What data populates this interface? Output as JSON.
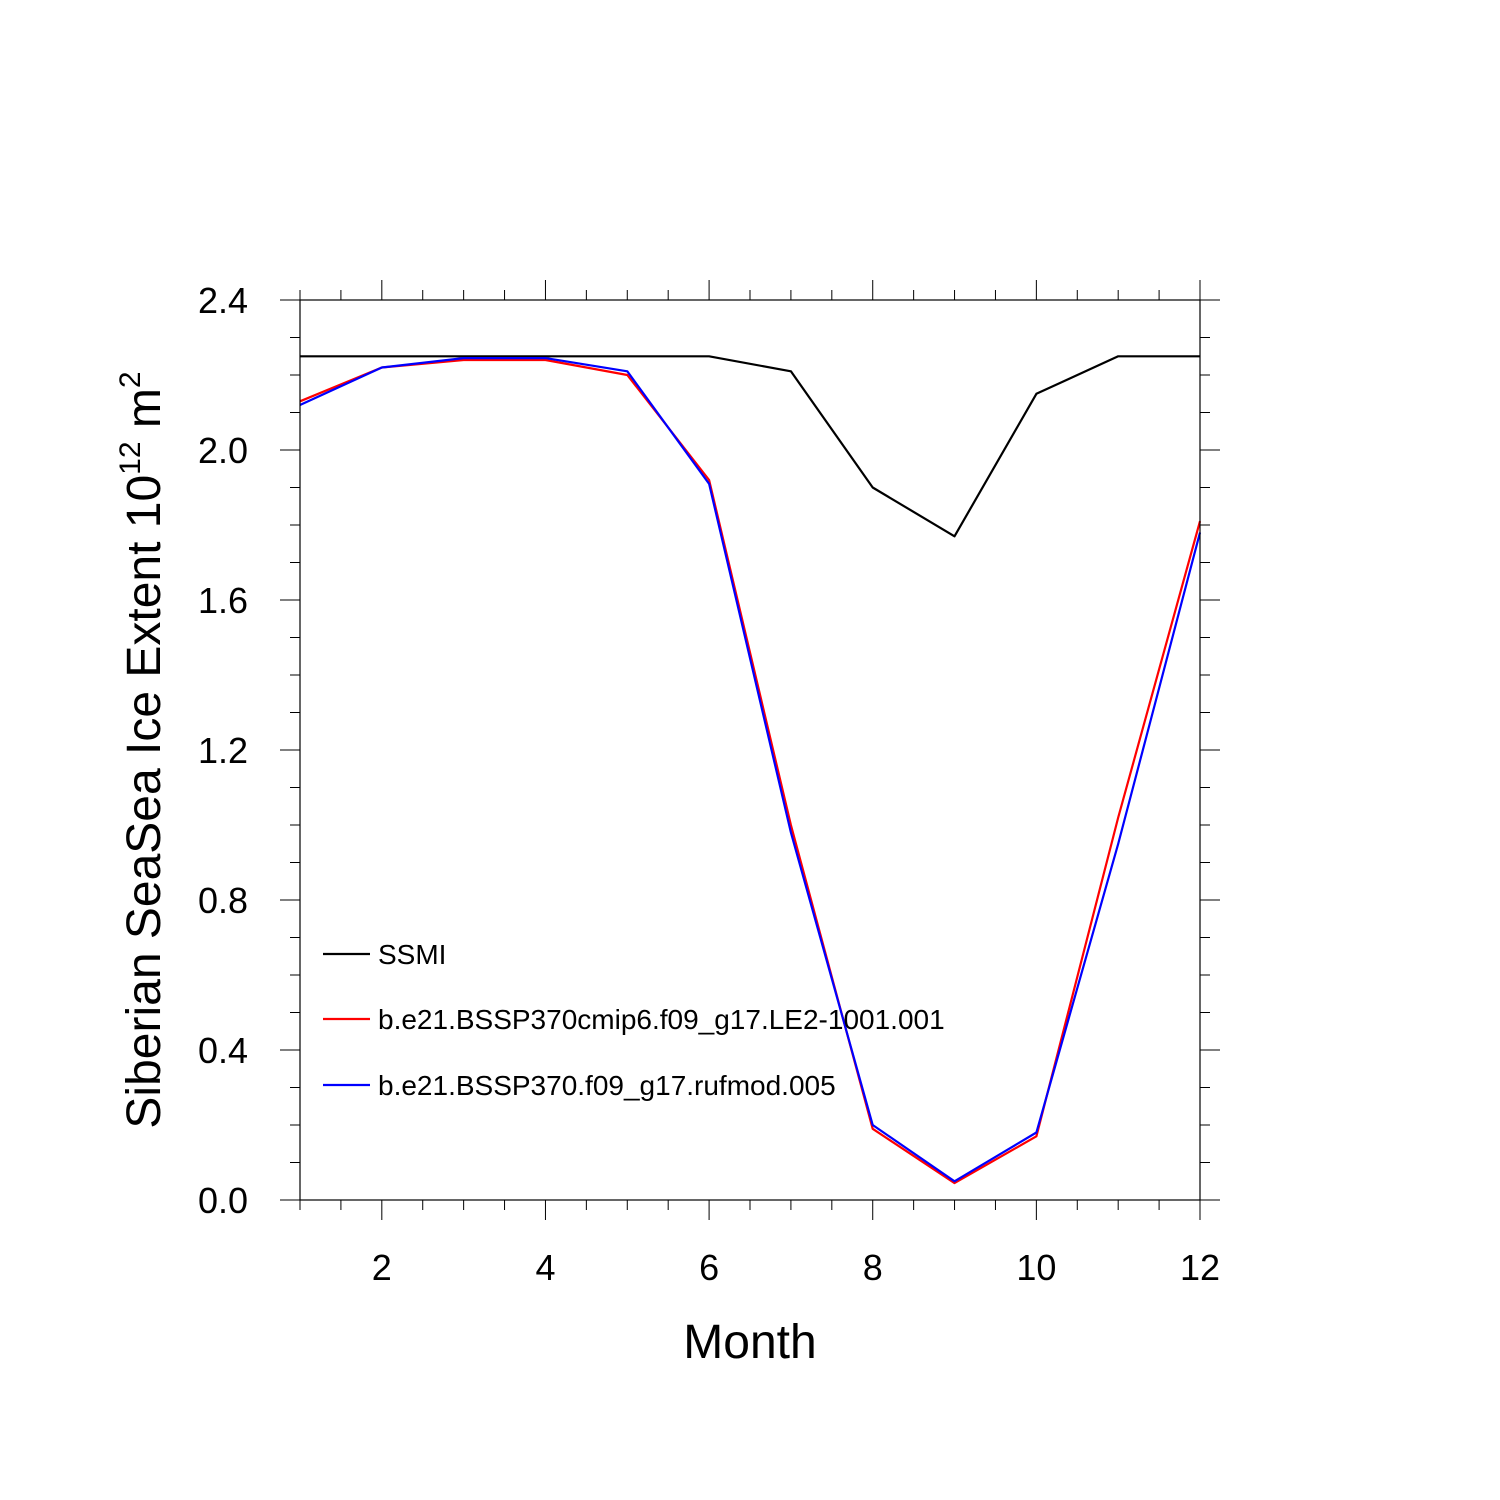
{
  "chart_data": {
    "type": "line",
    "title": "",
    "xlabel": "Month",
    "ylabel": "Siberian SeaSea Ice Extent 10",
    "ylabel_exponent": "12",
    "ylabel_unit": " m",
    "ylabel_unit_exponent": "2",
    "xlim": [
      1,
      12
    ],
    "ylim": [
      0,
      2.4
    ],
    "x_ticks": [
      2,
      4,
      6,
      8,
      10,
      12
    ],
    "x_tick_labels": [
      "2",
      "4",
      "6",
      "8",
      "10",
      "12"
    ],
    "y_ticks": [
      0.0,
      0.4,
      0.8,
      1.2,
      1.6,
      2.0,
      2.4
    ],
    "y_tick_labels": [
      "0.0",
      "0.4",
      "0.8",
      "1.2",
      "1.6",
      "2.0",
      "2.4"
    ],
    "x_minor_step": 0.5,
    "y_minor_step": 0.1,
    "grid": false,
    "legend_position": "lower-left",
    "x": [
      1,
      2,
      3,
      4,
      5,
      6,
      7,
      8,
      9,
      10,
      11,
      12
    ],
    "series": [
      {
        "name": "SSMI",
        "color": "#000000",
        "values": [
          2.25,
          2.25,
          2.25,
          2.25,
          2.25,
          2.25,
          2.21,
          1.9,
          1.77,
          2.15,
          2.25,
          2.25
        ]
      },
      {
        "name": "b.e21.BSSP370cmip6.f09_g17.LE2-1001.001",
        "color": "#ff0000",
        "values": [
          2.13,
          2.22,
          2.24,
          2.24,
          2.2,
          1.92,
          1.0,
          0.19,
          0.045,
          0.17,
          1.02,
          1.81
        ]
      },
      {
        "name": "b.e21.BSSP370.f09_g17.rufmod.005",
        "color": "#0000ff",
        "values": [
          2.12,
          2.22,
          2.245,
          2.245,
          2.21,
          1.91,
          0.98,
          0.2,
          0.05,
          0.18,
          0.95,
          1.78
        ]
      }
    ]
  }
}
